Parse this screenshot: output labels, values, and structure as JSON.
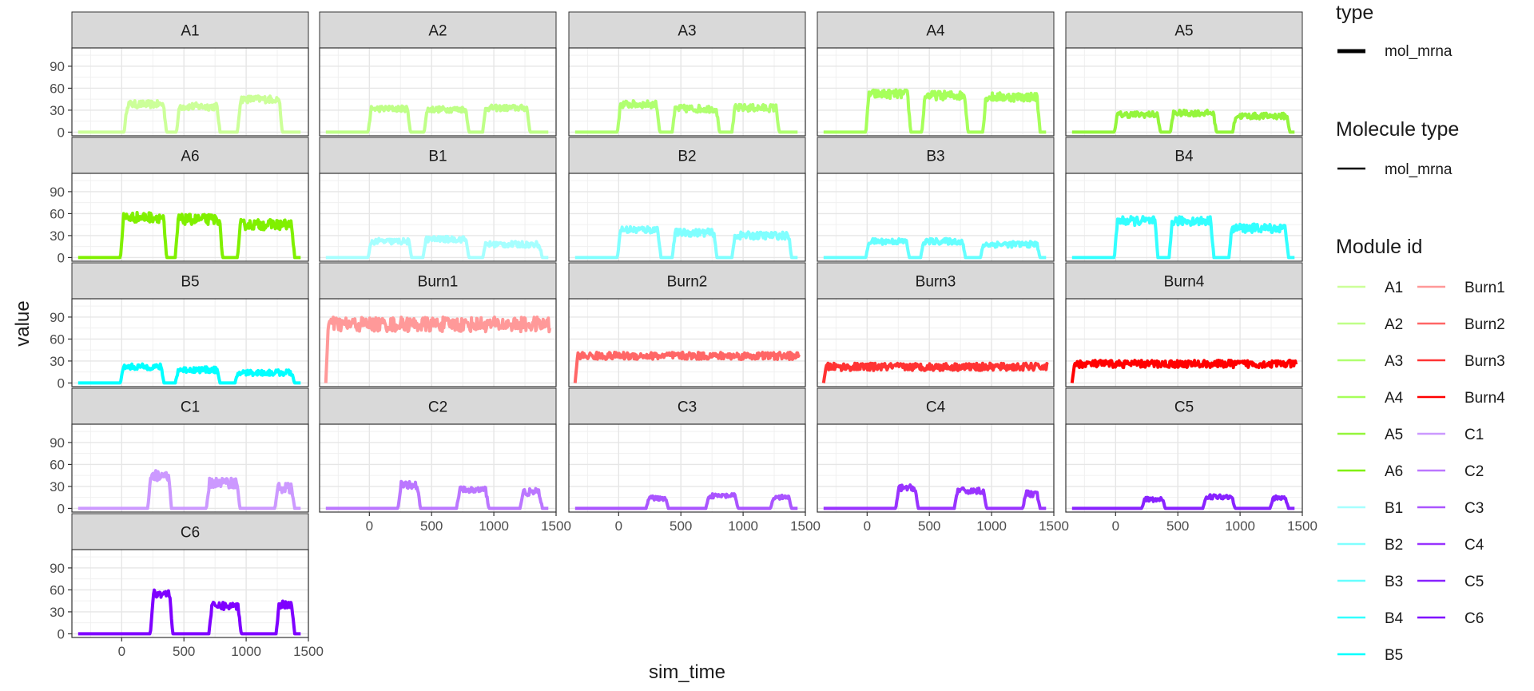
{
  "chart_data": {
    "type": "line",
    "xlabel": "sim_time",
    "ylabel": "value",
    "xlim": [
      -400,
      1500
    ],
    "ylim": [
      -5,
      115
    ],
    "x_ticks": [
      0,
      500,
      1000,
      1500
    ],
    "y_ticks": [
      0,
      30,
      60,
      90
    ],
    "grid": true,
    "legend_position": "right",
    "legend": {
      "type_title": "type",
      "type_label": "mol_mrna",
      "molecule_title": "Molecule type",
      "molecule_label": "mol_mrna",
      "module_title": "Module id"
    },
    "panels": [
      {
        "id": "A1",
        "color": "#ccff99",
        "shape": "periodic",
        "on": [
          [
            20,
            360
          ],
          [
            440,
            790
          ],
          [
            930,
            1290
          ]
        ],
        "levels": [
          38,
          35,
          45
        ],
        "noise": 5
      },
      {
        "id": "A2",
        "color": "#bfff88",
        "shape": "periodic",
        "on": [
          [
            -10,
            330
          ],
          [
            440,
            800
          ],
          [
            910,
            1290
          ]
        ],
        "levels": [
          32,
          31,
          33
        ],
        "noise": 4
      },
      {
        "id": "A3",
        "color": "#b0ff70",
        "shape": "periodic",
        "on": [
          [
            -10,
            330
          ],
          [
            430,
            810
          ],
          [
            910,
            1290
          ]
        ],
        "levels": [
          38,
          32,
          33
        ],
        "noise": 5
      },
      {
        "id": "A4",
        "color": "#a6ff5a",
        "shape": "periodic",
        "on": [
          [
            -10,
            350
          ],
          [
            440,
            810
          ],
          [
            930,
            1390
          ]
        ],
        "levels": [
          52,
          50,
          48
        ],
        "noise": 6
      },
      {
        "id": "A5",
        "color": "#94f53c",
        "shape": "periodic",
        "on": [
          [
            -10,
            360
          ],
          [
            440,
            810
          ],
          [
            940,
            1400
          ]
        ],
        "levels": [
          24,
          26,
          22
        ],
        "noise": 4
      },
      {
        "id": "A6",
        "color": "#80f000",
        "shape": "periodic",
        "on": [
          [
            -10,
            360
          ],
          [
            430,
            810
          ],
          [
            930,
            1390
          ]
        ],
        "levels": [
          55,
          52,
          45
        ],
        "noise": 7
      },
      {
        "id": "B1",
        "color": "#a6ffff",
        "shape": "periodic",
        "on": [
          [
            -10,
            340
          ],
          [
            430,
            800
          ],
          [
            910,
            1390
          ]
        ],
        "levels": [
          22,
          25,
          18
        ],
        "noise": 4
      },
      {
        "id": "B2",
        "color": "#80ffff",
        "shape": "periodic",
        "on": [
          [
            -10,
            340
          ],
          [
            430,
            790
          ],
          [
            910,
            1390
          ]
        ],
        "levels": [
          38,
          34,
          30
        ],
        "noise": 5
      },
      {
        "id": "B3",
        "color": "#66ffff",
        "shape": "periodic",
        "on": [
          [
            -10,
            340
          ],
          [
            430,
            790
          ],
          [
            910,
            1390
          ]
        ],
        "levels": [
          22,
          22,
          18
        ],
        "noise": 4
      },
      {
        "id": "B4",
        "color": "#33ffff",
        "shape": "periodic",
        "on": [
          [
            -10,
            340
          ],
          [
            430,
            790
          ],
          [
            910,
            1390
          ]
        ],
        "levels": [
          50,
          50,
          40
        ],
        "noise": 6
      },
      {
        "id": "B5",
        "color": "#00ffff",
        "shape": "periodic",
        "on": [
          [
            -10,
            340
          ],
          [
            430,
            790
          ],
          [
            910,
            1390
          ]
        ],
        "levels": [
          22,
          18,
          14
        ],
        "noise": 4
      },
      {
        "id": "Burn1",
        "color": "#ff9999",
        "shape": "steady",
        "level": 80,
        "noise": 10
      },
      {
        "id": "Burn2",
        "color": "#ff6666",
        "shape": "steady",
        "level": 37,
        "noise": 5
      },
      {
        "id": "Burn3",
        "color": "#ff3333",
        "shape": "steady",
        "level": 22,
        "noise": 5
      },
      {
        "id": "Burn4",
        "color": "#ff0000",
        "shape": "steady",
        "level": 26,
        "noise": 5
      },
      {
        "id": "C1",
        "color": "#cc99ff",
        "shape": "periodic",
        "on": [
          [
            210,
            400
          ],
          [
            680,
            950
          ],
          [
            1230,
            1390
          ]
        ],
        "levels": [
          45,
          35,
          28
        ],
        "noise": 7
      },
      {
        "id": "C2",
        "color": "#bb77ff",
        "shape": "periodic",
        "on": [
          [
            230,
            410
          ],
          [
            700,
            960
          ],
          [
            1210,
            1390
          ]
        ],
        "levels": [
          32,
          25,
          22
        ],
        "noise": 5
      },
      {
        "id": "C3",
        "color": "#aa55ff",
        "shape": "periodic",
        "on": [
          [
            220,
            400
          ],
          [
            700,
            960
          ],
          [
            1220,
            1390
          ]
        ],
        "levels": [
          14,
          17,
          15
        ],
        "noise": 3
      },
      {
        "id": "C4",
        "color": "#9933ff",
        "shape": "periodic",
        "on": [
          [
            230,
            410
          ],
          [
            700,
            960
          ],
          [
            1250,
            1390
          ]
        ],
        "levels": [
          28,
          24,
          20
        ],
        "noise": 4
      },
      {
        "id": "C5",
        "color": "#8822ff",
        "shape": "periodic",
        "on": [
          [
            210,
            400
          ],
          [
            700,
            960
          ],
          [
            1240,
            1390
          ]
        ],
        "levels": [
          12,
          16,
          14
        ],
        "noise": 3
      },
      {
        "id": "C6",
        "color": "#7f00ff",
        "shape": "periodic",
        "on": [
          [
            230,
            410
          ],
          [
            700,
            960
          ],
          [
            1240,
            1390
          ]
        ],
        "levels": [
          55,
          38,
          40
        ],
        "noise": 5
      }
    ]
  }
}
